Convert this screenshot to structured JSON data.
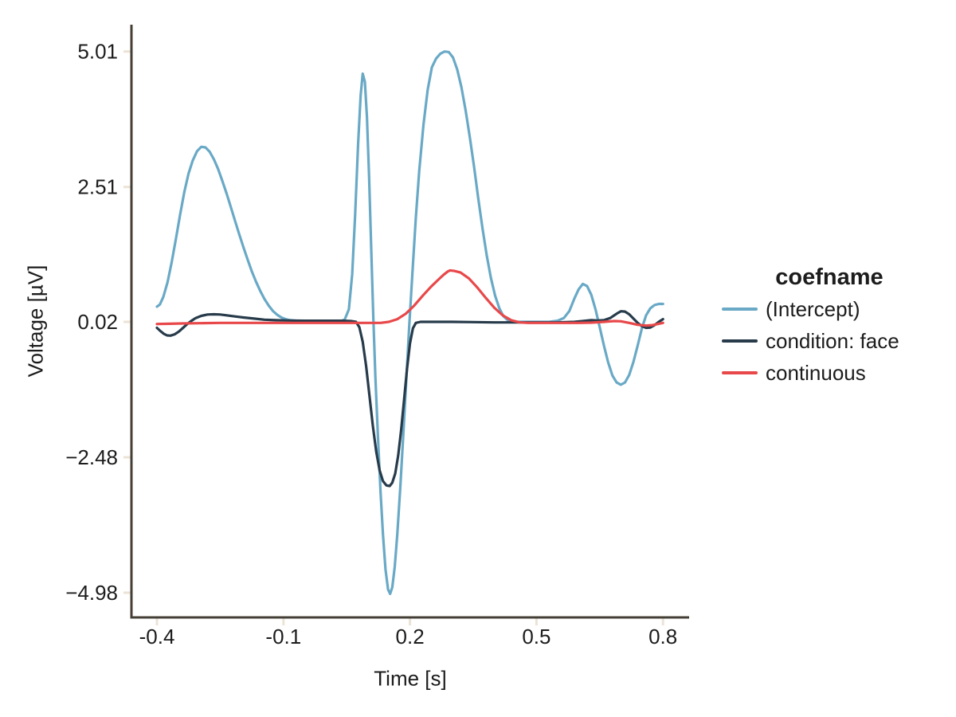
{
  "figure": {
    "background": "#ffffff"
  },
  "colors": {
    "spine": "#443e35",
    "tick_mark": "#ece3d6",
    "text": "#1c1c1c"
  },
  "legend": {
    "title": "coefname"
  },
  "chart_data": {
    "type": "line",
    "title": "",
    "xlabel": "Time [s]",
    "ylabel": "Voltage [µV]",
    "grid": false,
    "legend_position": "right",
    "legend_title": "coefname",
    "xlim": [
      -0.4605,
      0.862
    ],
    "ylim": [
      -5.436,
      5.505
    ],
    "x_ticks": {
      "values": [
        -0.4,
        -0.1,
        0.2,
        0.5,
        0.8
      ],
      "labels": [
        "-0.4",
        "-0.1",
        "0.2",
        "0.5",
        "0.8"
      ]
    },
    "y_ticks": {
      "values": [
        5.01,
        2.51,
        0.02,
        -2.48,
        -4.98
      ],
      "labels": [
        "5.01",
        "2.51",
        "0.02",
        "−2.48",
        "−4.98"
      ]
    },
    "series": [
      {
        "name": "(Intercept)",
        "color": "#69a9c6",
        "points": [
          [
            -0.4,
            0.3
          ],
          [
            -0.393,
            0.34
          ],
          [
            -0.385,
            0.48
          ],
          [
            -0.375,
            0.75
          ],
          [
            -0.365,
            1.12
          ],
          [
            -0.355,
            1.55
          ],
          [
            -0.345,
            2.0
          ],
          [
            -0.335,
            2.42
          ],
          [
            -0.325,
            2.76
          ],
          [
            -0.315,
            3.0
          ],
          [
            -0.305,
            3.17
          ],
          [
            -0.295,
            3.25
          ],
          [
            -0.285,
            3.24
          ],
          [
            -0.275,
            3.16
          ],
          [
            -0.265,
            3.02
          ],
          [
            -0.255,
            2.84
          ],
          [
            -0.245,
            2.62
          ],
          [
            -0.235,
            2.39
          ],
          [
            -0.225,
            2.14
          ],
          [
            -0.215,
            1.89
          ],
          [
            -0.205,
            1.64
          ],
          [
            -0.195,
            1.4
          ],
          [
            -0.185,
            1.17
          ],
          [
            -0.175,
            0.95
          ],
          [
            -0.165,
            0.76
          ],
          [
            -0.155,
            0.59
          ],
          [
            -0.145,
            0.44
          ],
          [
            -0.135,
            0.32
          ],
          [
            -0.125,
            0.22
          ],
          [
            -0.115,
            0.15
          ],
          [
            -0.105,
            0.1
          ],
          [
            -0.095,
            0.07
          ],
          [
            -0.085,
            0.05
          ],
          [
            -0.07,
            0.04
          ],
          [
            -0.05,
            0.03
          ],
          [
            -0.02,
            0.03
          ],
          [
            0.01,
            0.03
          ],
          [
            0.035,
            0.03
          ],
          [
            0.045,
            0.06
          ],
          [
            0.055,
            0.25
          ],
          [
            0.063,
            0.9
          ],
          [
            0.07,
            2.0
          ],
          [
            0.077,
            3.3
          ],
          [
            0.083,
            4.2
          ],
          [
            0.088,
            4.6
          ],
          [
            0.093,
            4.45
          ],
          [
            0.098,
            3.8
          ],
          [
            0.103,
            2.7
          ],
          [
            0.108,
            1.4
          ],
          [
            0.113,
            0.1
          ],
          [
            0.118,
            -1.0
          ],
          [
            0.124,
            -2.1
          ],
          [
            0.13,
            -3.1
          ],
          [
            0.136,
            -3.9
          ],
          [
            0.142,
            -4.55
          ],
          [
            0.148,
            -4.92
          ],
          [
            0.153,
            -5.0
          ],
          [
            0.158,
            -4.88
          ],
          [
            0.164,
            -4.5
          ],
          [
            0.17,
            -3.9
          ],
          [
            0.177,
            -3.05
          ],
          [
            0.184,
            -2.1
          ],
          [
            0.191,
            -1.1
          ],
          [
            0.198,
            -0.1
          ],
          [
            0.206,
            0.95
          ],
          [
            0.214,
            1.95
          ],
          [
            0.222,
            2.8
          ],
          [
            0.232,
            3.65
          ],
          [
            0.242,
            4.3
          ],
          [
            0.252,
            4.72
          ],
          [
            0.262,
            4.88
          ],
          [
            0.272,
            4.97
          ],
          [
            0.282,
            5.01
          ],
          [
            0.292,
            5.0
          ],
          [
            0.302,
            4.9
          ],
          [
            0.312,
            4.68
          ],
          [
            0.322,
            4.35
          ],
          [
            0.332,
            3.92
          ],
          [
            0.342,
            3.42
          ],
          [
            0.352,
            2.88
          ],
          [
            0.362,
            2.3
          ],
          [
            0.372,
            1.75
          ],
          [
            0.382,
            1.25
          ],
          [
            0.392,
            0.83
          ],
          [
            0.402,
            0.5
          ],
          [
            0.412,
            0.27
          ],
          [
            0.422,
            0.12
          ],
          [
            0.432,
            0.05
          ],
          [
            0.445,
            0.02
          ],
          [
            0.47,
            0.02
          ],
          [
            0.5,
            0.02
          ],
          [
            0.53,
            0.02
          ],
          [
            0.55,
            0.04
          ],
          [
            0.565,
            0.09
          ],
          [
            0.578,
            0.22
          ],
          [
            0.59,
            0.45
          ],
          [
            0.6,
            0.62
          ],
          [
            0.61,
            0.72
          ],
          [
            0.62,
            0.68
          ],
          [
            0.63,
            0.52
          ],
          [
            0.64,
            0.25
          ],
          [
            0.65,
            -0.08
          ],
          [
            0.66,
            -0.42
          ],
          [
            0.67,
            -0.73
          ],
          [
            0.68,
            -0.97
          ],
          [
            0.69,
            -1.1
          ],
          [
            0.7,
            -1.14
          ],
          [
            0.71,
            -1.1
          ],
          [
            0.72,
            -0.96
          ],
          [
            0.73,
            -0.72
          ],
          [
            0.74,
            -0.42
          ],
          [
            0.75,
            -0.1
          ],
          [
            0.76,
            0.14
          ],
          [
            0.77,
            0.27
          ],
          [
            0.78,
            0.33
          ],
          [
            0.79,
            0.35
          ],
          [
            0.8,
            0.35
          ]
        ]
      },
      {
        "name": "condition: face",
        "color": "#273b4b",
        "points": [
          [
            -0.4,
            -0.09
          ],
          [
            -0.392,
            -0.15
          ],
          [
            -0.384,
            -0.2
          ],
          [
            -0.376,
            -0.23
          ],
          [
            -0.368,
            -0.235
          ],
          [
            -0.358,
            -0.21
          ],
          [
            -0.348,
            -0.16
          ],
          [
            -0.338,
            -0.09
          ],
          [
            -0.328,
            -0.02
          ],
          [
            -0.318,
            0.04
          ],
          [
            -0.308,
            0.09
          ],
          [
            -0.295,
            0.13
          ],
          [
            -0.28,
            0.155
          ],
          [
            -0.265,
            0.16
          ],
          [
            -0.25,
            0.155
          ],
          [
            -0.235,
            0.14
          ],
          [
            -0.215,
            0.12
          ],
          [
            -0.195,
            0.1
          ],
          [
            -0.17,
            0.08
          ],
          [
            -0.145,
            0.06
          ],
          [
            -0.12,
            0.05
          ],
          [
            -0.09,
            0.045
          ],
          [
            -0.05,
            0.04
          ],
          [
            0.0,
            0.04
          ],
          [
            0.04,
            0.04
          ],
          [
            0.06,
            0.035
          ],
          [
            0.072,
            0.02
          ],
          [
            0.08,
            -0.08
          ],
          [
            0.088,
            -0.35
          ],
          [
            0.096,
            -0.8
          ],
          [
            0.104,
            -1.35
          ],
          [
            0.112,
            -1.9
          ],
          [
            0.12,
            -2.38
          ],
          [
            0.128,
            -2.72
          ],
          [
            0.136,
            -2.92
          ],
          [
            0.144,
            -3.0
          ],
          [
            0.152,
            -3.01
          ],
          [
            0.158,
            -2.95
          ],
          [
            0.165,
            -2.78
          ],
          [
            0.172,
            -2.45
          ],
          [
            0.179,
            -1.98
          ],
          [
            0.186,
            -1.42
          ],
          [
            0.193,
            -0.85
          ],
          [
            0.2,
            -0.38
          ],
          [
            0.207,
            -0.1
          ],
          [
            0.214,
            0.0
          ],
          [
            0.225,
            0.02
          ],
          [
            0.25,
            0.02
          ],
          [
            0.3,
            0.02
          ],
          [
            0.35,
            0.015
          ],
          [
            0.4,
            0.01
          ],
          [
            0.45,
            0.01
          ],
          [
            0.5,
            0.01
          ],
          [
            0.55,
            0.01
          ],
          [
            0.59,
            0.02
          ],
          [
            0.61,
            0.035
          ],
          [
            0.63,
            0.05
          ],
          [
            0.645,
            0.045
          ],
          [
            0.66,
            0.05
          ],
          [
            0.675,
            0.09
          ],
          [
            0.69,
            0.17
          ],
          [
            0.7,
            0.215
          ],
          [
            0.71,
            0.21
          ],
          [
            0.72,
            0.16
          ],
          [
            0.73,
            0.08
          ],
          [
            0.74,
            0.0
          ],
          [
            0.75,
            -0.06
          ],
          [
            0.76,
            -0.09
          ],
          [
            0.77,
            -0.085
          ],
          [
            0.78,
            -0.04
          ],
          [
            0.79,
            0.02
          ],
          [
            0.8,
            0.07
          ]
        ]
      },
      {
        "name": "continuous",
        "color": "#e8484a",
        "points": [
          [
            -0.4,
            -0.02
          ],
          [
            -0.37,
            -0.015
          ],
          [
            -0.34,
            -0.01
          ],
          [
            -0.3,
            -0.005
          ],
          [
            -0.25,
            0.0
          ],
          [
            -0.2,
            0.0
          ],
          [
            -0.15,
            0.0
          ],
          [
            -0.1,
            0.0
          ],
          [
            -0.05,
            0.0
          ],
          [
            0.0,
            0.0
          ],
          [
            0.05,
            0.0
          ],
          [
            0.1,
            0.0
          ],
          [
            0.13,
            0.0
          ],
          [
            0.15,
            0.02
          ],
          [
            0.17,
            0.07
          ],
          [
            0.19,
            0.17
          ],
          [
            0.21,
            0.32
          ],
          [
            0.23,
            0.5
          ],
          [
            0.25,
            0.67
          ],
          [
            0.27,
            0.82
          ],
          [
            0.28,
            0.89
          ],
          [
            0.29,
            0.95
          ],
          [
            0.295,
            0.97
          ],
          [
            0.305,
            0.96
          ],
          [
            0.32,
            0.93
          ],
          [
            0.34,
            0.82
          ],
          [
            0.36,
            0.65
          ],
          [
            0.38,
            0.46
          ],
          [
            0.4,
            0.28
          ],
          [
            0.42,
            0.14
          ],
          [
            0.44,
            0.05
          ],
          [
            0.46,
            0.01
          ],
          [
            0.48,
            0.0
          ],
          [
            0.52,
            0.0
          ],
          [
            0.56,
            0.0
          ],
          [
            0.6,
            0.0
          ],
          [
            0.63,
            0.005
          ],
          [
            0.66,
            0.02
          ],
          [
            0.685,
            0.035
          ],
          [
            0.7,
            0.03
          ],
          [
            0.72,
            0.0
          ],
          [
            0.74,
            -0.035
          ],
          [
            0.76,
            -0.05
          ],
          [
            0.775,
            -0.04
          ],
          [
            0.79,
            -0.015
          ],
          [
            0.8,
            0.0
          ]
        ]
      }
    ]
  }
}
